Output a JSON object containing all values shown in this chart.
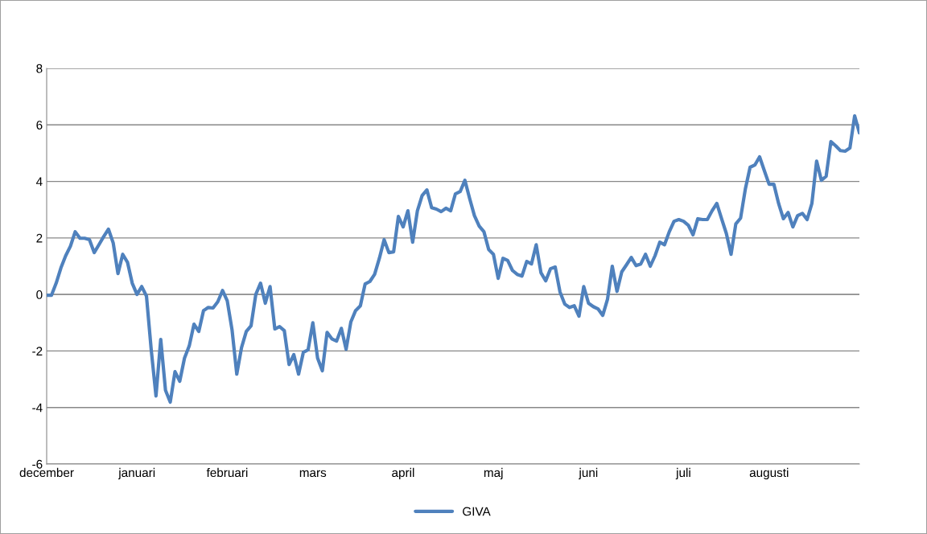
{
  "chart_data": {
    "type": "line",
    "ylim": [
      -6,
      8
    ],
    "yticks": [
      -6,
      -4,
      -2,
      0,
      2,
      4,
      6,
      8
    ],
    "categories": [
      "december",
      null,
      null,
      null,
      null,
      null,
      null,
      null,
      null,
      null,
      null,
      null,
      null,
      null,
      null,
      null,
      null,
      null,
      null,
      "januari",
      null,
      null,
      null,
      null,
      null,
      null,
      null,
      null,
      null,
      null,
      null,
      null,
      null,
      null,
      null,
      null,
      null,
      null,
      "februari",
      null,
      null,
      null,
      null,
      null,
      null,
      null,
      null,
      null,
      null,
      null,
      null,
      null,
      null,
      null,
      null,
      null,
      "mars",
      null,
      null,
      null,
      null,
      null,
      null,
      null,
      null,
      null,
      null,
      null,
      null,
      null,
      null,
      null,
      null,
      null,
      null,
      "april",
      null,
      null,
      null,
      null,
      null,
      null,
      null,
      null,
      null,
      null,
      null,
      null,
      null,
      null,
      null,
      null,
      null,
      null,
      "maj",
      null,
      null,
      null,
      null,
      null,
      null,
      null,
      null,
      null,
      null,
      null,
      null,
      null,
      null,
      null,
      null,
      null,
      null,
      null,
      "juni",
      null,
      null,
      null,
      null,
      null,
      null,
      null,
      null,
      null,
      null,
      null,
      null,
      null,
      null,
      null,
      null,
      null,
      null,
      null,
      "juli",
      null,
      null,
      null,
      null,
      null,
      null,
      null,
      null,
      null,
      null,
      null,
      null,
      null,
      null,
      null,
      null,
      null,
      "augusti",
      null,
      null,
      null,
      null,
      null,
      null,
      null,
      null,
      null,
      null,
      null,
      null,
      null,
      null,
      null,
      null,
      null,
      null,
      null
    ],
    "grid": "y",
    "legend": "bottom",
    "marker": "none",
    "line_style": "solid",
    "series": [
      {
        "name": "GIVA",
        "color": "#4f81bd",
        "values": [
          -0.03,
          -0.03,
          0.4,
          0.94,
          1.37,
          1.71,
          2.22,
          1.99,
          1.99,
          1.94,
          1.48,
          1.76,
          2.05,
          2.31,
          1.82,
          0.74,
          1.42,
          1.14,
          0.4,
          0,
          0.28,
          -0.06,
          -1.96,
          -3.59,
          -1.59,
          -3.39,
          -3.81,
          -2.73,
          -3.07,
          -2.25,
          -1.82,
          -1.05,
          -1.31,
          -0.57,
          -0.46,
          -0.48,
          -0.26,
          0.14,
          -0.23,
          -1.25,
          -2.82,
          -1.88,
          -1.31,
          -1.11,
          0,
          0.4,
          -0.31,
          0.28,
          -1.22,
          -1.14,
          -1.28,
          -2.48,
          -2.13,
          -2.82,
          -2.05,
          -1.96,
          -1.0,
          -2.25,
          -2.7,
          -1.34,
          -1.57,
          -1.65,
          -1.2,
          -1.94,
          -0.97,
          -0.57,
          -0.4,
          0.37,
          0.46,
          0.71,
          1.28,
          1.94,
          1.48,
          1.51,
          2.76,
          2.39,
          2.96,
          1.85,
          2.96,
          3.5,
          3.7,
          3.07,
          3.02,
          2.93,
          3.05,
          2.96,
          3.56,
          3.64,
          4.04,
          3.39,
          2.79,
          2.42,
          2.22,
          1.59,
          1.42,
          0.57,
          1.28,
          1.2,
          0.85,
          0.71,
          0.65,
          1.17,
          1.08,
          1.76,
          0.77,
          0.48,
          0.91,
          0.97,
          0.09,
          -0.34,
          -0.46,
          -0.4,
          -0.77,
          0.28,
          -0.31,
          -0.43,
          -0.51,
          -0.74,
          -0.17,
          1.0,
          0.11,
          0.8,
          1.05,
          1.31,
          1.02,
          1.08,
          1.42,
          1.0,
          1.37,
          1.85,
          1.76,
          2.22,
          2.59,
          2.65,
          2.59,
          2.45,
          2.11,
          2.68,
          2.65,
          2.65,
          2.96,
          3.22,
          2.68,
          2.16,
          1.42,
          2.5,
          2.7,
          3.73,
          4.5,
          4.58,
          4.87,
          4.38,
          3.9,
          3.9,
          3.22,
          2.68,
          2.9,
          2.39,
          2.79,
          2.87,
          2.65,
          3.22,
          4.72,
          4.04,
          4.18,
          5.41,
          5.26,
          5.09,
          5.07,
          5.18,
          6.32,
          5.72
        ]
      }
    ]
  }
}
